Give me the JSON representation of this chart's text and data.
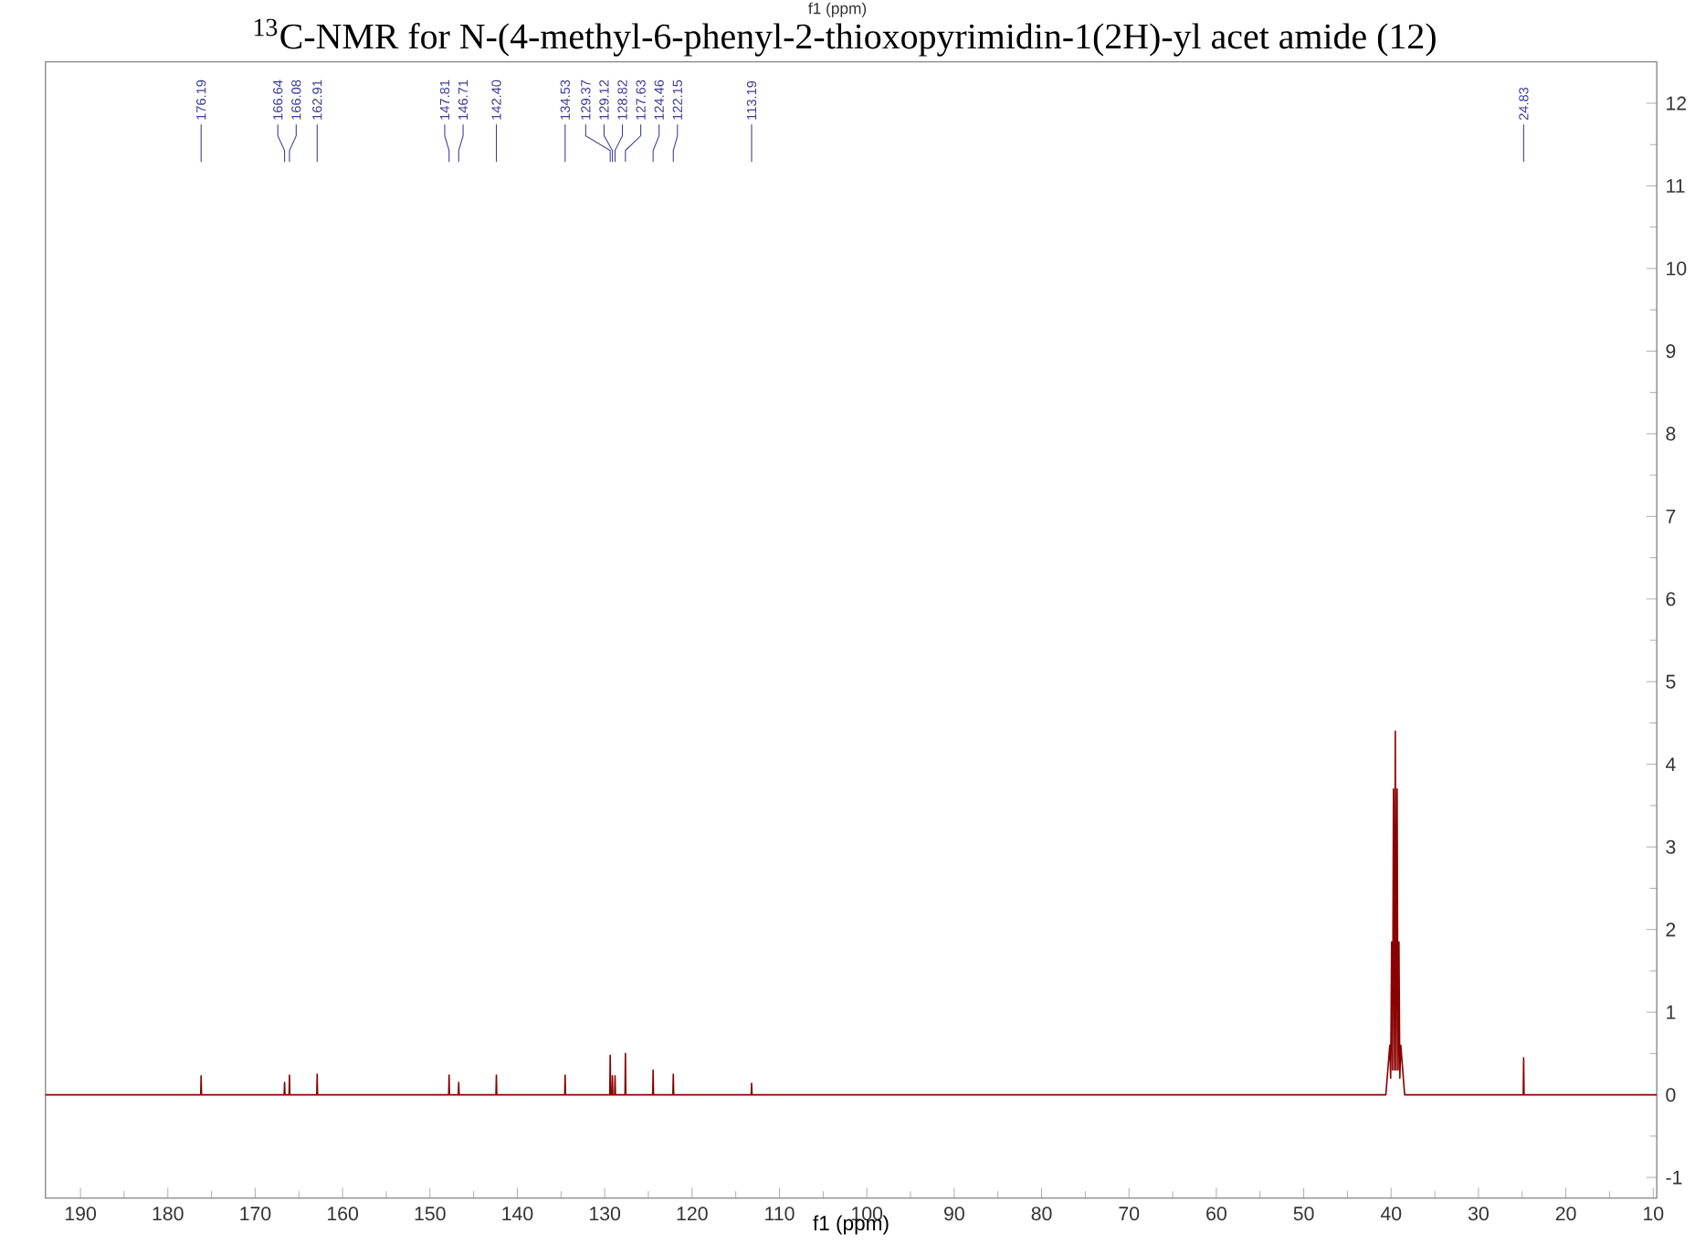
{
  "chart_data": {
    "type": "line",
    "title": "$^{13}$C-NMR  for N-(4-methyl-6-phenyl-2-thioxopyrimidin-1(2H)-yl acet amide (12)",
    "xlabel": "f1 (ppm)",
    "xlim": [
      194,
      9.6
    ],
    "ylim": [
      -1.25,
      12.5
    ],
    "xticks": [
      190,
      180,
      170,
      160,
      150,
      140,
      130,
      120,
      110,
      100,
      90,
      80,
      70,
      60,
      50,
      40,
      30,
      20,
      10
    ],
    "yticks": [
      -1,
      0,
      1,
      2,
      3,
      4,
      5,
      6,
      7,
      8,
      9,
      10,
      11,
      12
    ],
    "grid": false,
    "series": [
      {
        "color": "#8b0000",
        "x": [
          194,
          176.24,
          176.19,
          176.14,
          166.69,
          166.64,
          166.59,
          166.13,
          166.08,
          166.03,
          162.96,
          162.91,
          162.86,
          147.86,
          147.81,
          147.76,
          146.76,
          146.71,
          146.66,
          142.45,
          142.4,
          142.35,
          134.58,
          134.53,
          134.48,
          129.42,
          129.37,
          129.32,
          129.17,
          129.12,
          129.07,
          128.87,
          128.82,
          128.77,
          127.68,
          127.63,
          127.58,
          124.51,
          124.46,
          124.41,
          122.2,
          122.15,
          122.1,
          113.24,
          113.19,
          113.14,
          40.6,
          40.15,
          40.05,
          39.94,
          39.84,
          39.73,
          39.62,
          39.52,
          39.42,
          39.31,
          39.2,
          39.1,
          39.0,
          38.89,
          38.45,
          24.88,
          24.83,
          24.78,
          9.6
        ],
        "values": [
          0,
          0,
          0.23,
          0,
          0,
          0.15,
          0,
          0,
          0.24,
          0,
          0,
          0.25,
          0,
          0,
          0.24,
          0,
          0,
          0.15,
          0,
          0,
          0.24,
          0,
          0,
          0.24,
          0,
          0,
          0.48,
          0,
          0,
          0.23,
          0,
          0,
          0.23,
          0,
          0,
          0.5,
          0,
          0,
          0.3,
          0,
          0,
          0.25,
          0,
          0,
          0.14,
          0,
          0,
          0.6,
          0.2,
          1.85,
          0.3,
          3.7,
          0.3,
          4.4,
          0.3,
          3.7,
          0.3,
          1.85,
          0.2,
          0.6,
          0,
          0,
          0.45,
          0,
          0
        ]
      }
    ],
    "annotations": [
      "f1 (ppm)",
      {
        "text": "176.19",
        "x": 176.19
      },
      {
        "text": "166.64",
        "x": 166.64
      },
      {
        "text": "166.08",
        "x": 166.08
      },
      {
        "text": "162.91",
        "x": 162.91
      },
      {
        "text": "147.81",
        "x": 147.81
      },
      {
        "text": "146.71",
        "x": 146.71
      },
      {
        "text": "142.40",
        "x": 142.4
      },
      {
        "text": "134.53",
        "x": 134.53
      },
      {
        "text": "129.37",
        "x": 129.37
      },
      {
        "text": "129.12",
        "x": 129.12
      },
      {
        "text": "128.82",
        "x": 128.82
      },
      {
        "text": "127.63",
        "x": 127.63
      },
      {
        "text": "124.46",
        "x": 124.46
      },
      {
        "text": "122.15",
        "x": 122.15
      },
      {
        "text": "113.19",
        "x": 113.19
      },
      {
        "text": "24.83",
        "x": 24.83
      }
    ]
  }
}
